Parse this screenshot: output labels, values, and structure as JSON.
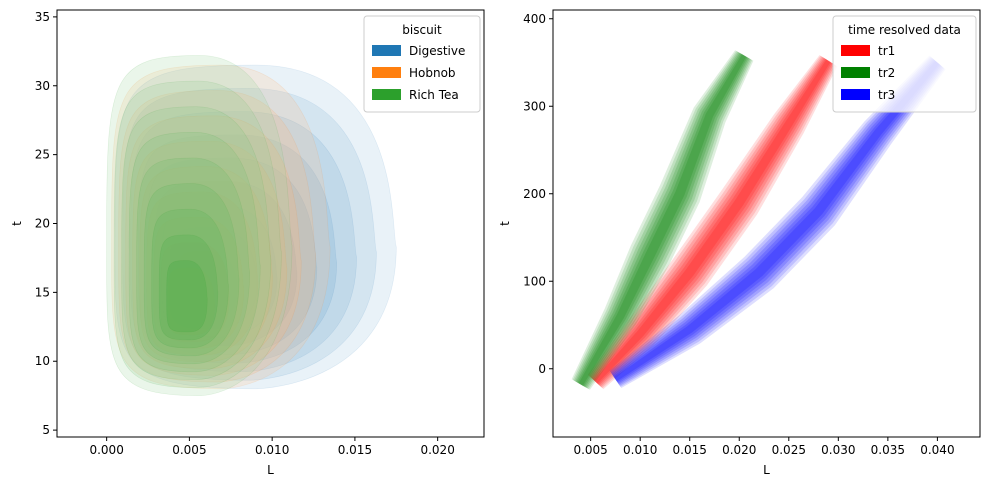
{
  "chart_data": [
    {
      "type": "kde-density-filled",
      "xlabel": "L",
      "ylabel": "t",
      "xlim": [
        -0.003,
        0.0228
      ],
      "ylim": [
        4.5,
        35.5
      ],
      "xticks": [
        0.0,
        0.005,
        0.01,
        0.015,
        0.02
      ],
      "xtick_labels": [
        "0.000",
        "0.005",
        "0.010",
        "0.015",
        "0.020"
      ],
      "yticks": [
        5,
        10,
        15,
        20,
        25,
        30,
        35
      ],
      "ytick_labels": [
        "5",
        "10",
        "15",
        "20",
        "25",
        "30",
        "35"
      ],
      "legend": {
        "title": "biscuit",
        "placement": "top-right",
        "entries": [
          {
            "label": "Digestive",
            "color": "#1f77b4"
          },
          {
            "label": "Hobnob",
            "color": "#ff7f0e"
          },
          {
            "label": "Rich Tea",
            "color": "#2ca02c"
          }
        ]
      },
      "series": [
        {
          "name": "Digestive",
          "color": "#1f77b4",
          "center": [
            0.0055,
            15.0
          ],
          "L_range": [
            0.0005,
            0.0175
          ],
          "t_range": [
            8.0,
            31.5
          ]
        },
        {
          "name": "Hobnob",
          "color": "#ff7f0e",
          "center": [
            0.0048,
            13.5
          ],
          "L_range": [
            0.0003,
            0.0135
          ],
          "t_range": [
            8.0,
            31.5
          ]
        },
        {
          "name": "Rich Tea",
          "color": "#2ca02c",
          "center": [
            0.0048,
            14.0
          ],
          "L_range": [
            0.0,
            0.0112
          ],
          "t_range": [
            7.5,
            32.2
          ]
        }
      ]
    },
    {
      "type": "kde-density-filled",
      "xlabel": "L",
      "ylabel": "t",
      "xlim": [
        0.0012,
        0.0443
      ],
      "ylim": [
        -78,
        410
      ],
      "xticks": [
        0.005,
        0.01,
        0.015,
        0.02,
        0.025,
        0.03,
        0.035,
        0.04
      ],
      "xtick_labels": [
        "0.005",
        "0.010",
        "0.015",
        "0.020",
        "0.025",
        "0.030",
        "0.035",
        "0.040"
      ],
      "yticks": [
        0,
        100,
        200,
        300,
        400
      ],
      "ytick_labels": [
        "0",
        "100",
        "200",
        "300",
        "400"
      ],
      "legend": {
        "title": "time resolved data",
        "placement": "top-right",
        "entries": [
          {
            "label": "tr1",
            "color": "#ff0000"
          },
          {
            "label": "tr2",
            "color": "#008000"
          },
          {
            "label": "tr3",
            "color": "#0000ff"
          }
        ]
      },
      "series": [
        {
          "name": "tr1",
          "color": "#ff0000",
          "ridge": [
            [
              0.0055,
              -15
            ],
            [
              0.01,
              40
            ],
            [
              0.015,
              110
            ],
            [
              0.02,
              190
            ],
            [
              0.025,
              280
            ],
            [
              0.029,
              352
            ]
          ]
        },
        {
          "name": "tr2",
          "color": "#008000",
          "ridge": [
            [
              0.004,
              -18
            ],
            [
              0.008,
              60
            ],
            [
              0.011,
              130
            ],
            [
              0.014,
              200
            ],
            [
              0.017,
              290
            ],
            [
              0.0205,
              358
            ]
          ]
        },
        {
          "name": "tr3",
          "color": "#0000ff",
          "ridge": [
            [
              0.0075,
              -12
            ],
            [
              0.015,
              45
            ],
            [
              0.022,
              110
            ],
            [
              0.028,
              180
            ],
            [
              0.034,
              270
            ],
            [
              0.04,
              350
            ]
          ]
        }
      ]
    }
  ]
}
